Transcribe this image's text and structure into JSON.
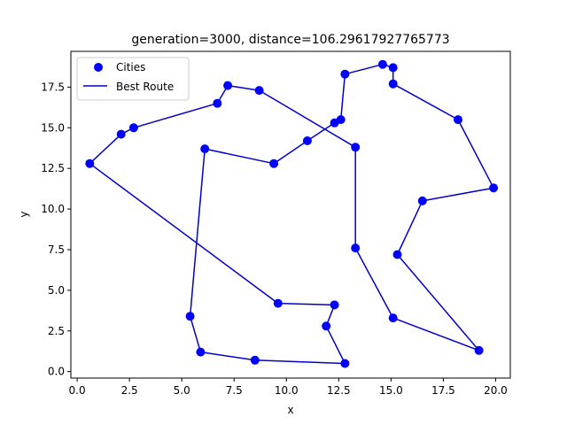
{
  "chart_data": {
    "type": "scatter",
    "title": "generation=3000, distance=106.29617927765773",
    "xlabel": "x",
    "ylabel": "y",
    "xlim": [
      -0.3,
      20.7
    ],
    "ylim": [
      -0.4,
      19.7
    ],
    "xticks": [
      0.0,
      2.5,
      5.0,
      7.5,
      10.0,
      12.5,
      15.0,
      17.5,
      20.0
    ],
    "xtick_labels": [
      "0.0",
      "2.5",
      "5.0",
      "7.5",
      "10.0",
      "12.5",
      "15.0",
      "17.5",
      "20.0"
    ],
    "yticks": [
      0.0,
      2.5,
      5.0,
      7.5,
      10.0,
      12.5,
      15.0,
      17.5
    ],
    "ytick_labels": [
      "0.0",
      "2.5",
      "5.0",
      "7.5",
      "10.0",
      "12.5",
      "15.0",
      "17.5"
    ],
    "grid": false,
    "legend": {
      "placement": "top-left",
      "entries": [
        "Cities",
        "Best Route"
      ]
    },
    "colors": {
      "points": "#0000ff",
      "route": "#0000cc"
    },
    "series": [
      {
        "name": "Cities",
        "kind": "points",
        "x": [
          0.6,
          2.1,
          2.7,
          6.7,
          7.2,
          8.7,
          6.1,
          9.4,
          11.0,
          12.3,
          12.6,
          12.8,
          14.6,
          15.1,
          15.1,
          18.2,
          19.9,
          16.5,
          15.3,
          13.3,
          13.3,
          15.1,
          19.2,
          12.8,
          8.5,
          5.9,
          5.4,
          9.6,
          12.3,
          11.9
        ],
        "y": [
          12.8,
          14.6,
          15.0,
          16.5,
          17.6,
          17.3,
          13.7,
          12.8,
          14.2,
          15.3,
          15.5,
          18.3,
          18.9,
          18.7,
          17.7,
          15.5,
          11.3,
          10.5,
          7.2,
          7.6,
          13.8,
          3.3,
          1.3,
          0.5,
          0.7,
          1.2,
          3.4,
          4.2,
          4.1,
          2.8
        ]
      },
      {
        "name": "Best Route",
        "kind": "line",
        "x": [
          0.6,
          2.1,
          2.7,
          6.7,
          7.2,
          8.7,
          13.3,
          13.3,
          15.1,
          19.2,
          15.3,
          16.5,
          19.9,
          18.2,
          15.1,
          15.1,
          14.6,
          12.8,
          12.6,
          12.3,
          11.0,
          9.4,
          6.1,
          5.4,
          5.9,
          8.5,
          12.8,
          11.9,
          12.3,
          9.6,
          0.6
        ],
        "y": [
          12.8,
          14.6,
          15.0,
          16.5,
          17.6,
          17.3,
          13.8,
          7.6,
          3.3,
          1.3,
          7.2,
          10.5,
          11.3,
          15.5,
          17.7,
          18.7,
          18.9,
          18.3,
          15.5,
          15.3,
          14.2,
          12.8,
          13.7,
          3.4,
          1.2,
          0.7,
          0.5,
          2.8,
          4.1,
          4.2,
          12.8
        ]
      }
    ]
  }
}
